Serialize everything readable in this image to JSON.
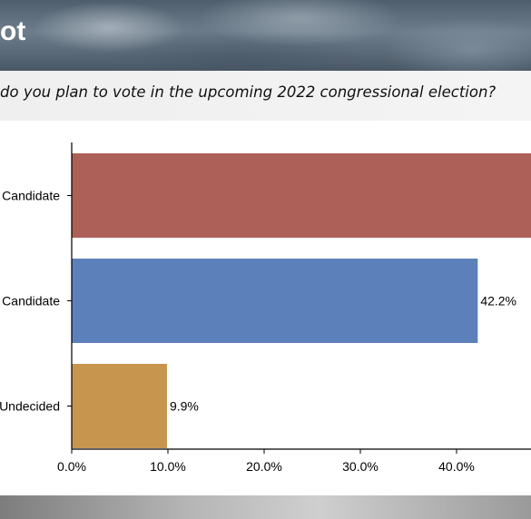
{
  "header": {
    "title": "ot"
  },
  "question": {
    "text": "do you plan to vote in the upcoming 2022 congressional election?"
  },
  "chart_data": {
    "type": "bar",
    "orientation": "horizontal",
    "categories": [
      "Candidate",
      "Candidate",
      "Undecided"
    ],
    "values": [
      48.0,
      42.2,
      9.9
    ],
    "data_labels": [
      "",
      "42.2%",
      "9.9%"
    ],
    "colors": [
      "#ad6058",
      "#5b80ba",
      "#c8954e"
    ],
    "xlim": [
      0,
      48
    ],
    "xticks": [
      0,
      10,
      20,
      30,
      40
    ],
    "xtick_labels": [
      "0.0%",
      "10.0%",
      "20.0%",
      "30.0%",
      "40.0%"
    ],
    "grid": false
  }
}
